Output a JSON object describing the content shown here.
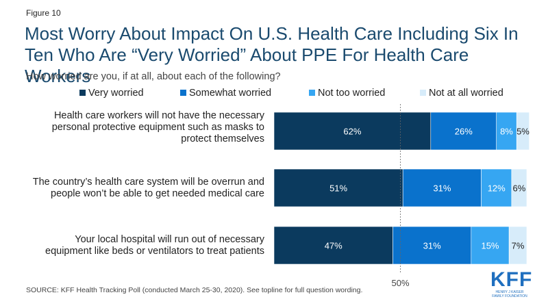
{
  "figure_label": "Figure 10",
  "title": "Most Worry About Impact On U.S. Health Care Including Six In Ten Who Are “Very Worried” About PPE For Health Care Workers",
  "subtitle": "How worried are you, if at all, about each of the following?",
  "source": "SOURCE: KFF Health Tracking Poll (conducted March 25-30, 2020). See topline for full question wording.",
  "logo": {
    "mark": "KFF",
    "line1": "HENRY J KAISER",
    "line2": "FAMILY FOUNDATION"
  },
  "chart_data": {
    "type": "bar",
    "orientation": "horizontal",
    "stacked": true,
    "categories": [
      "Health care workers will not have the necessary personal protective equipment such as masks to protect themselves",
      "The country’s health care system will be overrun and people won’t be able to get needed medical care",
      "Your local hospital will run out of necessary equipment like beds or ventilators to treat patients"
    ],
    "series": [
      {
        "name": "Very worried",
        "color": "#0b3a5e",
        "values": [
          62,
          51,
          47
        ],
        "labels": [
          "62%",
          "51%",
          "47%"
        ]
      },
      {
        "name": "Somewhat worried",
        "color": "#0a72cc",
        "values": [
          26,
          31,
          31
        ],
        "labels": [
          "26%",
          "31%",
          "31%"
        ]
      },
      {
        "name": "Not too worried",
        "color": "#36a6f2",
        "values": [
          8,
          12,
          15
        ],
        "labels": [
          "8%",
          "12%",
          "15%"
        ]
      },
      {
        "name": "Not at all worried",
        "color": "#d7ecfa",
        "values": [
          5,
          6,
          7
        ],
        "labels": [
          "5%",
          "6%",
          "7%"
        ]
      }
    ],
    "reference_line": {
      "value": 50,
      "label": "50%"
    },
    "xlim": [
      0,
      100
    ],
    "legend": "top",
    "grid": false
  }
}
